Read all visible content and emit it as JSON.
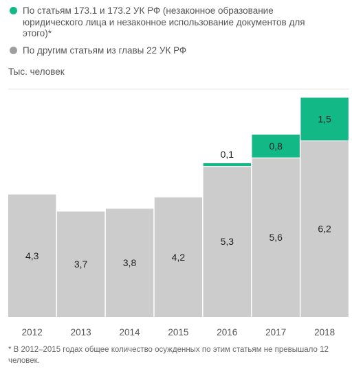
{
  "legend": {
    "items": [
      {
        "label": "По статьям 173.1 и 173.2 УК РФ (незаконное образование юридического лица и незаконное использование документов для этого)*",
        "color": "#12b886"
      },
      {
        "label": "По другим статьям из главы 22 УК РФ",
        "color": "#9e9e9e"
      }
    ]
  },
  "unit_label": "Тыс. человек",
  "footnote": "* В 2012–2015 годах общее количество осужденных по этим статьям не превышало 12 человек.",
  "chart_data": {
    "type": "bar",
    "stacked": true,
    "categories": [
      "2012",
      "2013",
      "2014",
      "2015",
      "2016",
      "2017",
      "2018"
    ],
    "ylim": [
      0,
      8
    ],
    "series": [
      {
        "name": "По другим статьям из главы 22 УК РФ",
        "values": [
          4.3,
          3.7,
          3.8,
          4.2,
          5.3,
          5.6,
          6.2
        ],
        "labels": [
          "4,3",
          "3,7",
          "3,8",
          "4,2",
          "5,3",
          "5,6",
          "6,2"
        ],
        "color": "#cccccc"
      },
      {
        "name": "По статьям 173.1 и 173.2 УК РФ (незаконное образование юридического лица и незаконное использование документов для этого)*",
        "values": [
          null,
          null,
          null,
          null,
          0.1,
          0.8,
          1.5
        ],
        "labels": [
          "",
          "",
          "",
          "",
          "0,1",
          "0,8",
          "1,5"
        ],
        "color": "#12b886"
      }
    ]
  }
}
